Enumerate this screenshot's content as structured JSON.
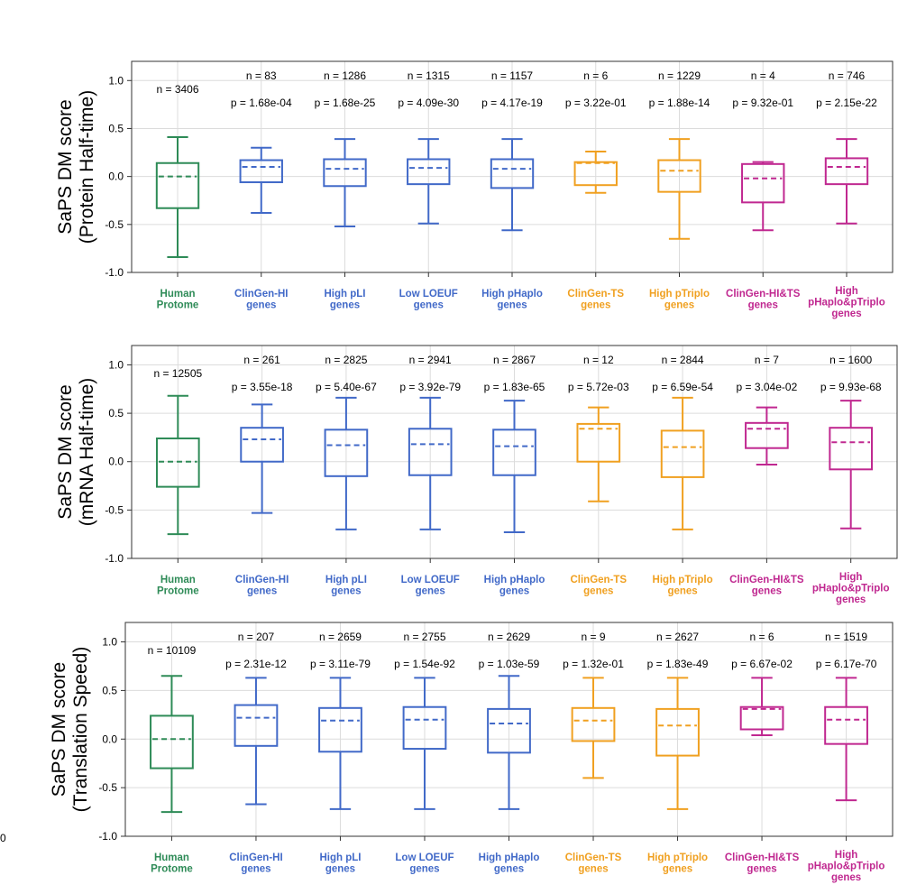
{
  "colors": {
    "green": "#2e8b57",
    "blue": "#4169c8",
    "orange": "#f0a020",
    "magenta": "#c02890",
    "grid": "#dcdcdc",
    "axis": "#333333"
  },
  "edge_mark": "0",
  "chart_data": [
    {
      "type": "boxplot",
      "ylabel_lines": [
        "SaPS DM score",
        "(Protein Half-time)"
      ],
      "ylim": [
        -1.0,
        1.2
      ],
      "yticks": [
        "1.0",
        "0.5",
        "0.0",
        "-0.5",
        "-1.0"
      ],
      "ytick_values": [
        1.0,
        0.5,
        0.0,
        -0.5,
        -1.0
      ],
      "categories": [
        {
          "lines": [
            "Human",
            "Protome"
          ],
          "color": "green",
          "n": "n = 3406",
          "p": "",
          "whislo": -0.84,
          "q1": -0.33,
          "med": 0.0,
          "q3": 0.14,
          "whishi": 0.41
        },
        {
          "lines": [
            "ClinGen-HI",
            "genes"
          ],
          "color": "blue",
          "n": "n = 83",
          "p": "p = 1.68e-04",
          "whislo": -0.38,
          "q1": -0.06,
          "med": 0.1,
          "q3": 0.17,
          "whishi": 0.3
        },
        {
          "lines": [
            "High pLI",
            "genes"
          ],
          "color": "blue",
          "n": "n = 1286",
          "p": "p = 1.68e-25",
          "whislo": -0.52,
          "q1": -0.1,
          "med": 0.08,
          "q3": 0.18,
          "whishi": 0.39
        },
        {
          "lines": [
            "Low LOEUF",
            "genes"
          ],
          "color": "blue",
          "n": "n = 1315",
          "p": "p = 4.09e-30",
          "whislo": -0.49,
          "q1": -0.08,
          "med": 0.09,
          "q3": 0.18,
          "whishi": 0.39
        },
        {
          "lines": [
            "High pHaplo",
            "genes"
          ],
          "color": "blue",
          "n": "n = 1157",
          "p": "p = 4.17e-19",
          "whislo": -0.56,
          "q1": -0.12,
          "med": 0.08,
          "q3": 0.18,
          "whishi": 0.39
        },
        {
          "lines": [
            "ClinGen-TS",
            "genes"
          ],
          "color": "orange",
          "n": "n = 6",
          "p": "p = 3.22e-01",
          "whislo": -0.17,
          "q1": -0.09,
          "med": 0.14,
          "q3": 0.15,
          "whishi": 0.26
        },
        {
          "lines": [
            "High pTriplo",
            "genes"
          ],
          "color": "orange",
          "n": "n = 1229",
          "p": "p = 1.88e-14",
          "whislo": -0.65,
          "q1": -0.16,
          "med": 0.06,
          "q3": 0.17,
          "whishi": 0.39
        },
        {
          "lines": [
            "ClinGen-HI&TS",
            "genes"
          ],
          "color": "magenta",
          "n": "n = 4",
          "p": "p = 9.32e-01",
          "whislo": -0.56,
          "q1": -0.27,
          "med": -0.02,
          "q3": 0.13,
          "whishi": 0.15
        },
        {
          "lines": [
            "High",
            "pHaplo&pTriplo",
            "genes"
          ],
          "color": "magenta",
          "n": "n = 746",
          "p": "p = 2.15e-22",
          "whislo": -0.49,
          "q1": -0.08,
          "med": 0.1,
          "q3": 0.19,
          "whishi": 0.39
        }
      ]
    },
    {
      "type": "boxplot",
      "ylabel_lines": [
        "SaPS DM score",
        "(mRNA Half-time)"
      ],
      "ylim": [
        -1.0,
        1.2
      ],
      "yticks": [
        "1.0",
        "0.5",
        "0.0",
        "-0.5",
        "-1.0"
      ],
      "ytick_values": [
        1.0,
        0.5,
        0.0,
        -0.5,
        -1.0
      ],
      "categories": [
        {
          "lines": [
            "Human",
            "Protome"
          ],
          "color": "green",
          "n": "n = 12505",
          "p": "",
          "whislo": -0.75,
          "q1": -0.26,
          "med": 0.0,
          "q3": 0.24,
          "whishi": 0.68
        },
        {
          "lines": [
            "ClinGen-HI",
            "genes"
          ],
          "color": "blue",
          "n": "n = 261",
          "p": "p = 3.55e-18",
          "whislo": -0.53,
          "q1": 0.0,
          "med": 0.23,
          "q3": 0.35,
          "whishi": 0.59
        },
        {
          "lines": [
            "High pLI",
            "genes"
          ],
          "color": "blue",
          "n": "n = 2825",
          "p": "p = 5.40e-67",
          "whislo": -0.7,
          "q1": -0.15,
          "med": 0.17,
          "q3": 0.33,
          "whishi": 0.66
        },
        {
          "lines": [
            "Low LOEUF",
            "genes"
          ],
          "color": "blue",
          "n": "n = 2941",
          "p": "p = 3.92e-79",
          "whislo": -0.7,
          "q1": -0.14,
          "med": 0.18,
          "q3": 0.34,
          "whishi": 0.66
        },
        {
          "lines": [
            "High pHaplo",
            "genes"
          ],
          "color": "blue",
          "n": "n = 2867",
          "p": "p = 1.83e-65",
          "whislo": -0.73,
          "q1": -0.14,
          "med": 0.16,
          "q3": 0.33,
          "whishi": 0.63
        },
        {
          "lines": [
            "ClinGen-TS",
            "genes"
          ],
          "color": "orange",
          "n": "n = 12",
          "p": "p = 5.72e-03",
          "whislo": -0.41,
          "q1": 0.0,
          "med": 0.34,
          "q3": 0.39,
          "whishi": 0.56
        },
        {
          "lines": [
            "High pTriplo",
            "genes"
          ],
          "color": "orange",
          "n": "n = 2844",
          "p": "p = 6.59e-54",
          "whislo": -0.7,
          "q1": -0.16,
          "med": 0.15,
          "q3": 0.32,
          "whishi": 0.66
        },
        {
          "lines": [
            "ClinGen-HI&TS",
            "genes"
          ],
          "color": "magenta",
          "n": "n = 7",
          "p": "p = 3.04e-02",
          "whislo": -0.03,
          "q1": 0.14,
          "med": 0.34,
          "q3": 0.4,
          "whishi": 0.56
        },
        {
          "lines": [
            "High",
            "pHaplo&pTriplo",
            "genes"
          ],
          "color": "magenta",
          "n": "n = 1600",
          "p": "p = 9.93e-68",
          "whislo": -0.69,
          "q1": -0.08,
          "med": 0.2,
          "q3": 0.35,
          "whishi": 0.63
        }
      ]
    },
    {
      "type": "boxplot",
      "ylabel_lines": [
        "SaPS DM score",
        "(Translation Speed)"
      ],
      "ylim": [
        -1.0,
        1.2
      ],
      "yticks": [
        "1.0",
        "0.5",
        "0.0",
        "-0.5",
        "-1.0"
      ],
      "ytick_values": [
        1.0,
        0.5,
        0.0,
        -0.5,
        -1.0
      ],
      "categories": [
        {
          "lines": [
            "Human",
            "Protome"
          ],
          "color": "green",
          "n": "n = 10109",
          "p": "",
          "whislo": -0.75,
          "q1": -0.3,
          "med": 0.0,
          "q3": 0.24,
          "whishi": 0.65
        },
        {
          "lines": [
            "ClinGen-HI",
            "genes"
          ],
          "color": "blue",
          "n": "n = 207",
          "p": "p = 2.31e-12",
          "whislo": -0.67,
          "q1": -0.07,
          "med": 0.22,
          "q3": 0.35,
          "whishi": 0.63
        },
        {
          "lines": [
            "High pLI",
            "genes"
          ],
          "color": "blue",
          "n": "n = 2659",
          "p": "p = 3.11e-79",
          "whislo": -0.72,
          "q1": -0.13,
          "med": 0.19,
          "q3": 0.32,
          "whishi": 0.63
        },
        {
          "lines": [
            "Low LOEUF",
            "genes"
          ],
          "color": "blue",
          "n": "n = 2755",
          "p": "p = 1.54e-92",
          "whislo": -0.72,
          "q1": -0.1,
          "med": 0.2,
          "q3": 0.33,
          "whishi": 0.63
        },
        {
          "lines": [
            "High pHaplo",
            "genes"
          ],
          "color": "blue",
          "n": "n = 2629",
          "p": "p = 1.03e-59",
          "whislo": -0.72,
          "q1": -0.14,
          "med": 0.16,
          "q3": 0.31,
          "whishi": 0.65
        },
        {
          "lines": [
            "ClinGen-TS",
            "genes"
          ],
          "color": "orange",
          "n": "n = 9",
          "p": "p = 1.32e-01",
          "whislo": -0.4,
          "q1": -0.02,
          "med": 0.19,
          "q3": 0.32,
          "whishi": 0.63
        },
        {
          "lines": [
            "High pTriplo",
            "genes"
          ],
          "color": "orange",
          "n": "n = 2627",
          "p": "p = 1.83e-49",
          "whislo": -0.72,
          "q1": -0.17,
          "med": 0.14,
          "q3": 0.31,
          "whishi": 0.63
        },
        {
          "lines": [
            "ClinGen-HI&TS",
            "genes"
          ],
          "color": "magenta",
          "n": "n = 6",
          "p": "p = 6.67e-02",
          "whislo": 0.04,
          "q1": 0.1,
          "med": 0.31,
          "q3": 0.33,
          "whishi": 0.63
        },
        {
          "lines": [
            "High",
            "pHaplo&pTriplo",
            "genes"
          ],
          "color": "magenta",
          "n": "n = 1519",
          "p": "p = 6.17e-70",
          "whislo": -0.63,
          "q1": -0.05,
          "med": 0.2,
          "q3": 0.33,
          "whishi": 0.63
        }
      ]
    }
  ]
}
